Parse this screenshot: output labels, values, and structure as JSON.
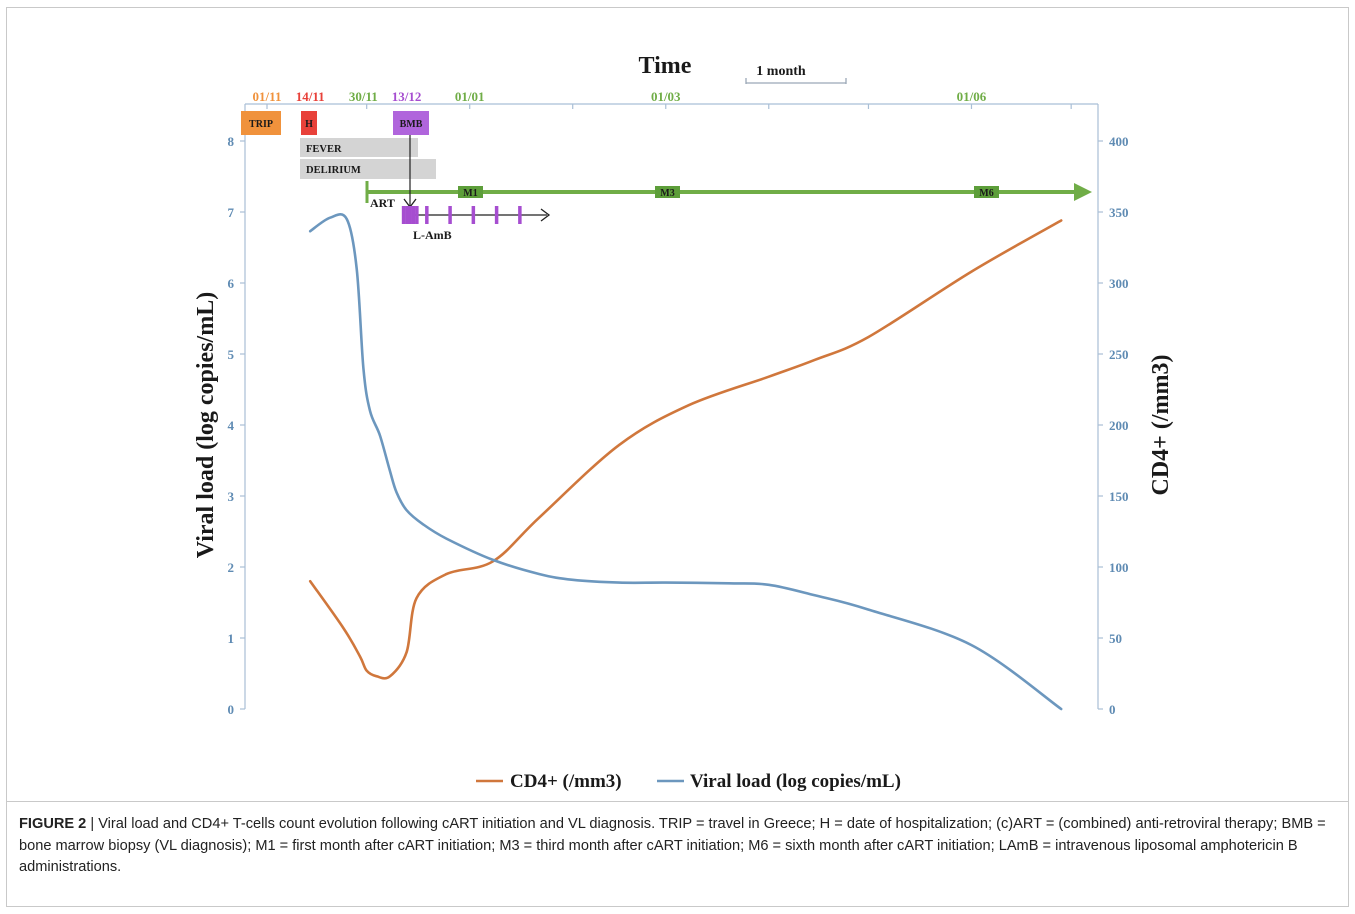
{
  "chart_data": {
    "type": "line",
    "title": "Time",
    "scale_label": "1 month",
    "ylabel_left": "Viral load (log copies/mL)",
    "ylabel_right": "CD4+ (/mm3)",
    "ylim_left": [
      0,
      8
    ],
    "ylim_right": [
      0,
      400
    ],
    "yticks_left": [
      "0",
      "1",
      "2",
      "3",
      "4",
      "5",
      "6",
      "7",
      "8"
    ],
    "yticks_right": [
      "0",
      "50",
      "100",
      "150",
      "200",
      "250",
      "300",
      "350",
      "400"
    ],
    "date_ticks": [
      {
        "label": "01/11",
        "color": "#f0923c"
      },
      {
        "label": "14/11",
        "color": "#e8413a"
      },
      {
        "label": "30/11",
        "color": "#70ad47"
      },
      {
        "label": "13/12",
        "color": "#a64dd0"
      },
      {
        "label": "01/01",
        "color": "#70ad47"
      },
      {
        "label": "01/03",
        "color": "#70ad47"
      },
      {
        "label": "01/06",
        "color": "#70ad47"
      }
    ],
    "events": {
      "trip": "TRIP",
      "hospitalization": "H",
      "bmb": "BMB",
      "fever": "FEVER",
      "delirium": "DELIRIUM",
      "art": "ART",
      "m1": "M1",
      "m3": "M3",
      "m6": "M6",
      "lamb": "L-AmB"
    },
    "colors": {
      "cd4": "#d0773c",
      "viral_load": "#6c97be",
      "art": "#70ad47",
      "lamb": "#a64dd0",
      "trip": "#f0923c",
      "hosp": "#e8413a",
      "bar_grey": "#d4d4d4",
      "axis": "#a9bfd6",
      "tick_label": "#5f8bb3"
    },
    "series": [
      {
        "name": "CD4+ (/mm3)",
        "axis": "right",
        "x": [
          "14/11",
          "24/11",
          "29/11",
          "01/12",
          "04/12",
          "08/12",
          "13/12",
          "16/12",
          "25/12",
          "08/01",
          "22/01",
          "15/02",
          "08/03",
          "01/04",
          "15/04",
          "01/05",
          "01/06",
          "28/06"
        ],
        "values": [
          90,
          57,
          37,
          27,
          23,
          23,
          40,
          78,
          95,
          104,
          135,
          186,
          214,
          234,
          246,
          262,
          308,
          344
        ]
      },
      {
        "name": "Viral load (log copies/mL)",
        "axis": "left",
        "x": [
          "14/11",
          "20/11",
          "25/11",
          "28/11",
          "30/11",
          "02/12",
          "05/12",
          "08/12",
          "10/12",
          "13/12",
          "18/12",
          "25/12",
          "08/01",
          "22/01",
          "01/02",
          "15/02",
          "01/03",
          "20/03",
          "01/04",
          "15/04",
          "01/05",
          "01/06",
          "28/06"
        ],
        "values": [
          6.73,
          6.92,
          6.9,
          6.2,
          4.8,
          4.2,
          3.85,
          3.35,
          3.05,
          2.8,
          2.6,
          2.4,
          2.1,
          1.9,
          1.82,
          1.78,
          1.78,
          1.77,
          1.75,
          1.6,
          1.4,
          0.9,
          0.0
        ]
      }
    ]
  },
  "caption": {
    "label": "FIGURE 2",
    "text": " | Viral load and CD4+ T-cells count evolution following cART initiation and VL diagnosis. TRIP = travel in Greece; H = date of hospitalization; (c)ART = (combined) anti-retroviral therapy; BMB = bone marrow biopsy (VL diagnosis); M1 = first month after cART initiation; M3 = third month after cART initiation; M6 = sixth month after cART initiation; LAmB = intravenous liposomal amphotericin B administrations."
  }
}
